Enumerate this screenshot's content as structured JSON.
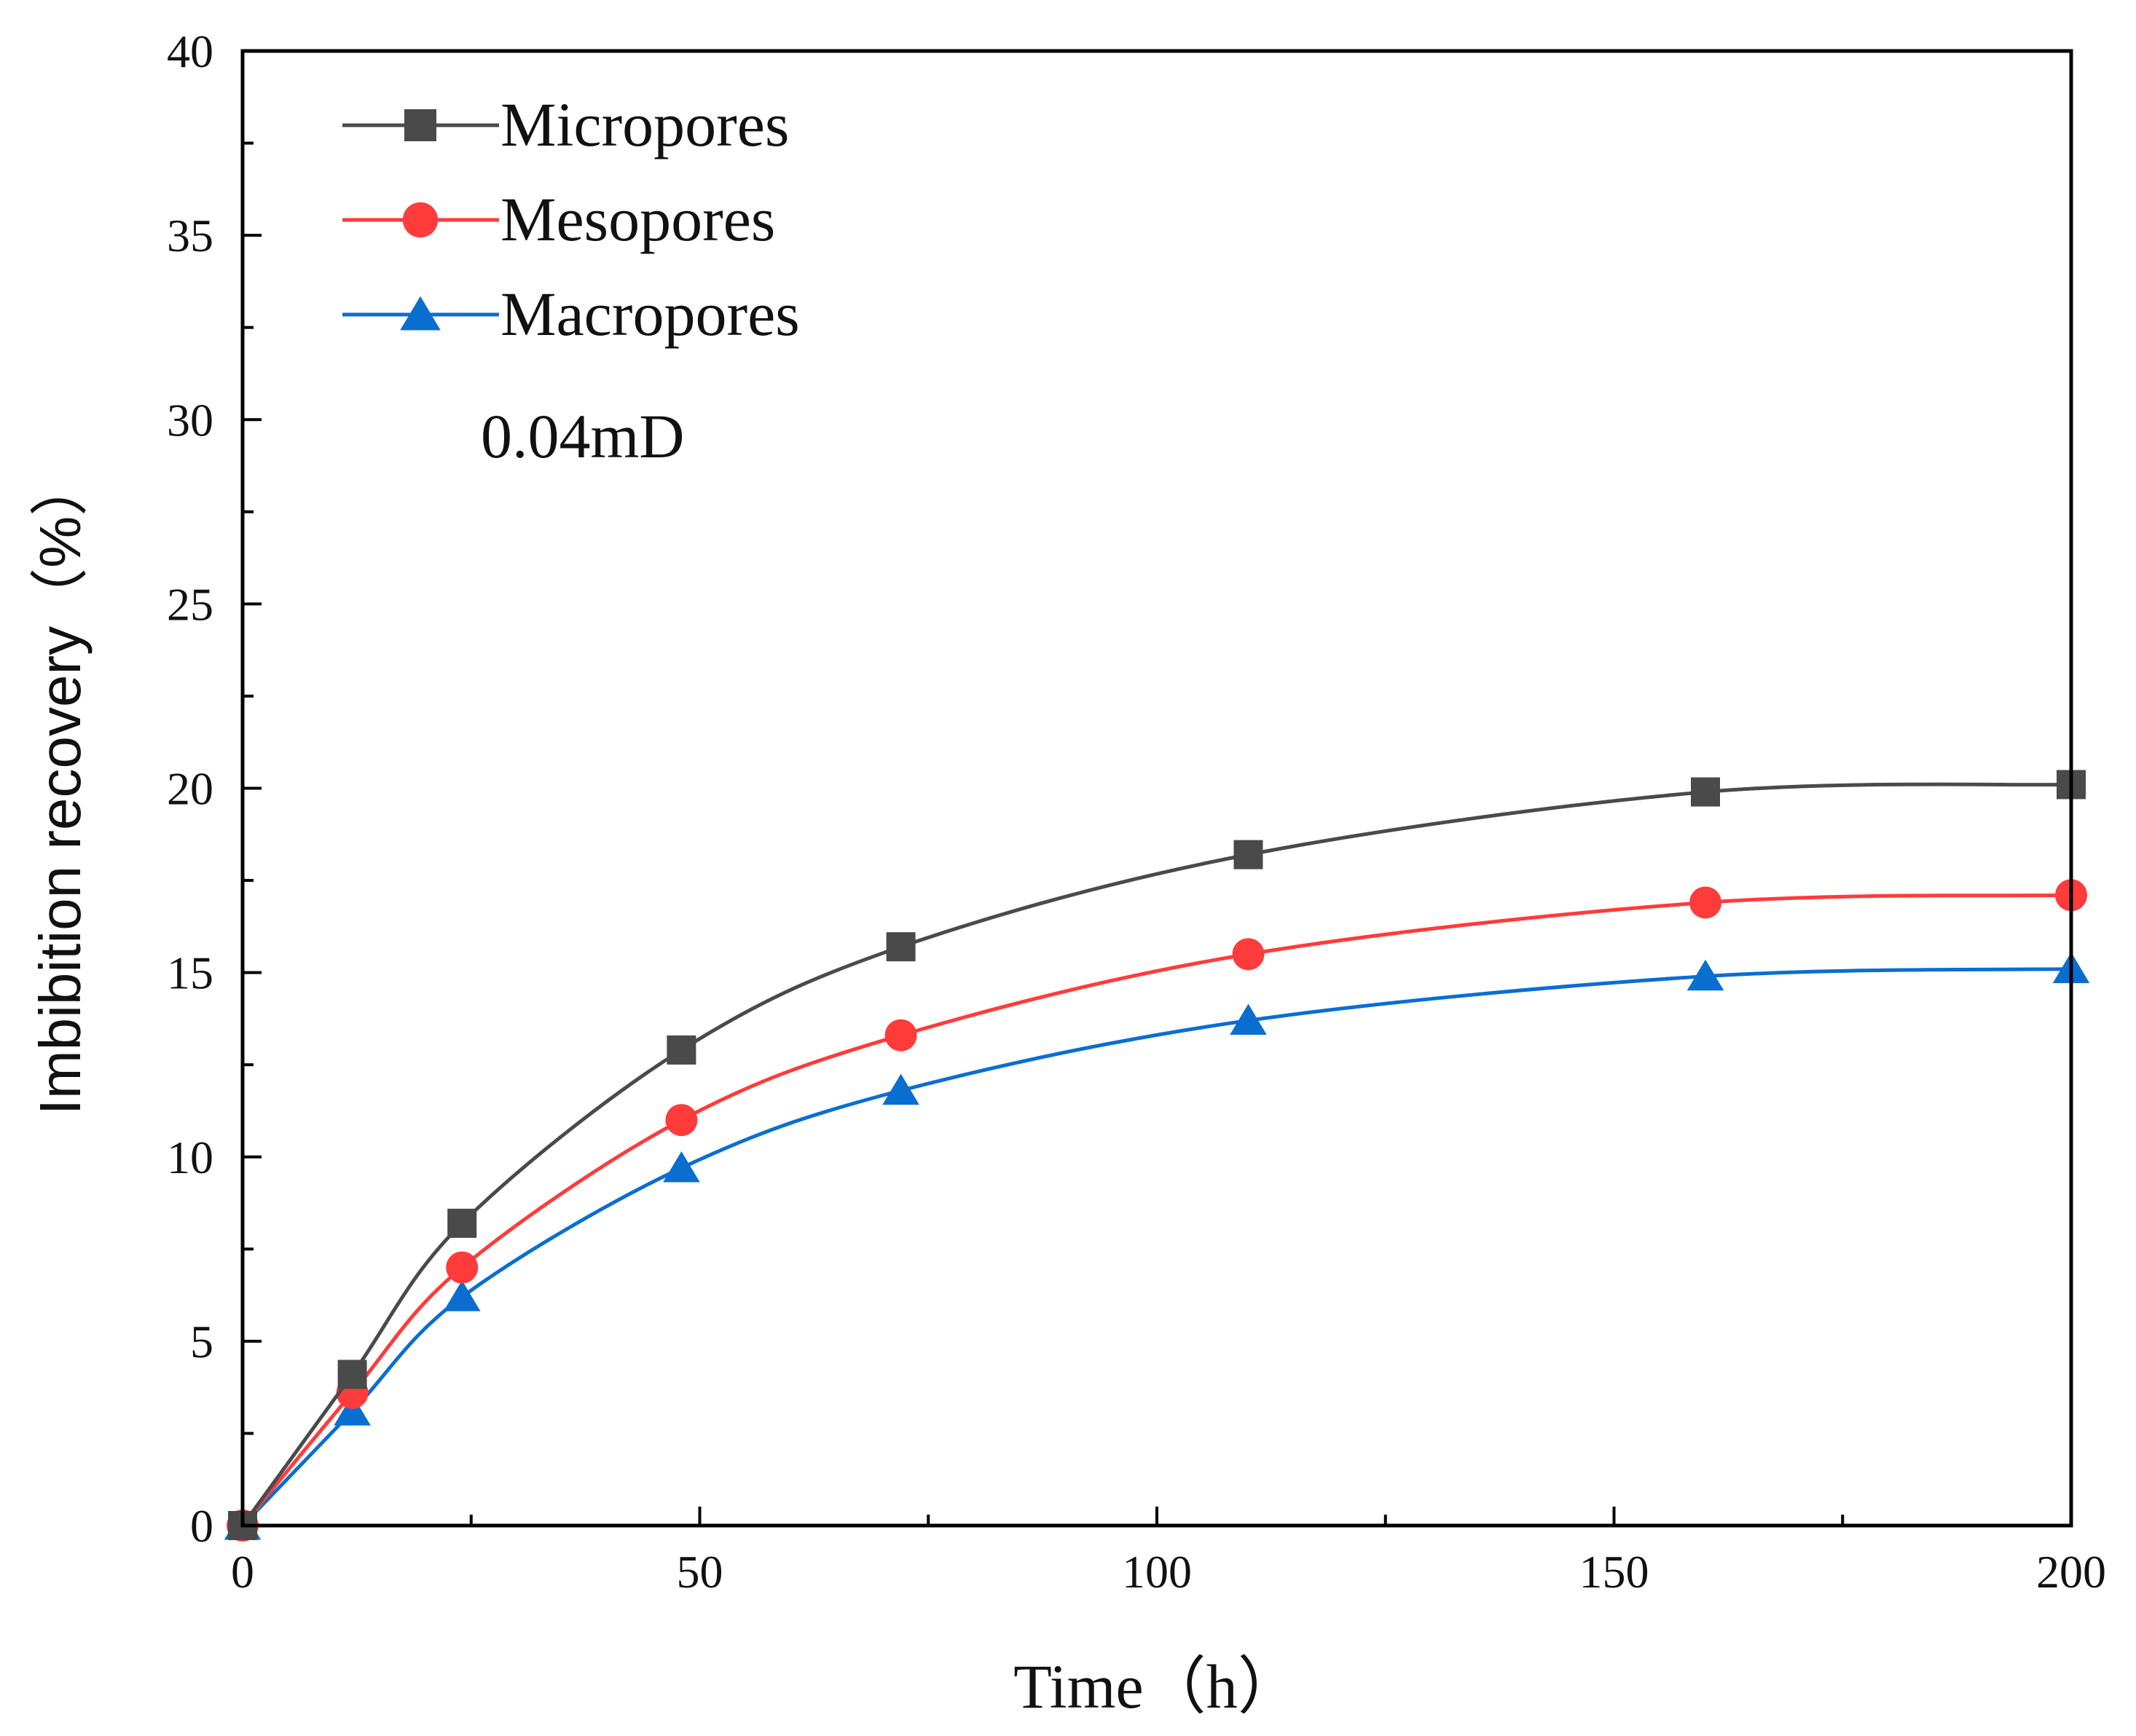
{
  "chart_data": {
    "type": "line",
    "title": "",
    "xlabel": "Time（h）",
    "ylabel": "Imbibition recovery（%）",
    "xlim": [
      0,
      200
    ],
    "ylim": [
      0,
      40
    ],
    "xticks": [
      0,
      50,
      100,
      150,
      200
    ],
    "yticks": [
      0,
      5,
      10,
      15,
      20,
      25,
      30,
      35,
      40
    ],
    "grid": false,
    "legend_position": "top-left",
    "annotation": "0.04mD",
    "x": [
      0,
      12,
      24,
      48,
      72,
      110,
      160,
      200
    ],
    "series": [
      {
        "name": "Micropores",
        "color": "#4a4a4a",
        "marker": "square",
        "values": [
          0,
          4.1,
          8.2,
          12.9,
          15.7,
          18.2,
          19.9,
          20.1
        ]
      },
      {
        "name": "Mesopores",
        "color": "#ff3b3b",
        "marker": "circle",
        "values": [
          0,
          3.6,
          7.0,
          11.0,
          13.3,
          15.5,
          16.9,
          17.1
        ]
      },
      {
        "name": "Macropores",
        "color": "#0a6ed1",
        "marker": "triangle",
        "values": [
          0,
          3.1,
          6.2,
          9.7,
          11.8,
          13.7,
          14.9,
          15.1
        ]
      }
    ]
  }
}
